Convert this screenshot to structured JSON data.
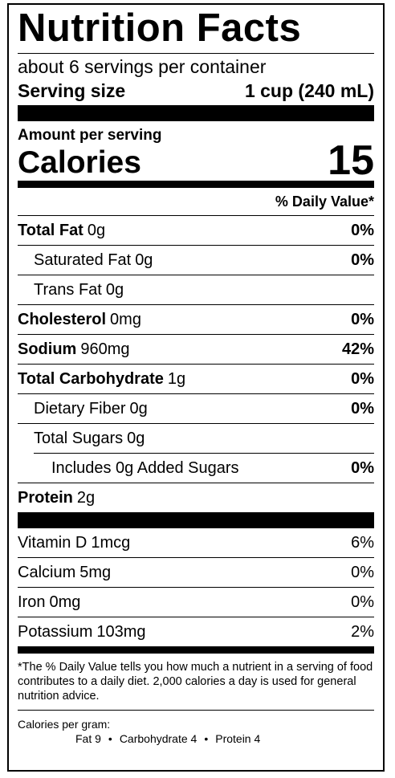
{
  "title": "Nutrition Facts",
  "servings": "about 6 servings per container",
  "serving_size": {
    "label": "Serving size",
    "value": "1 cup (240 mL)"
  },
  "amount_per_serving": "Amount per serving",
  "calories": {
    "label": "Calories",
    "value": 15
  },
  "daily_value_header": "% Daily Value*",
  "nutrients": [
    {
      "name": "Total Fat",
      "amount": "0g",
      "dv": "0%"
    },
    {
      "name": "Saturated Fat",
      "amount": "0g",
      "dv": "0%"
    },
    {
      "name": "Trans Fat",
      "amount": "0g"
    },
    {
      "name": "Cholesterol",
      "amount": "0mg",
      "dv": "0%"
    },
    {
      "name": "Sodium",
      "amount": "960mg",
      "dv": "42%"
    },
    {
      "name": "Total Carbohydrate",
      "amount": "1g",
      "dv": "0%"
    },
    {
      "name": "Dietary Fiber",
      "amount": "0g",
      "dv": "0%"
    },
    {
      "name": "Total Sugars",
      "amount": "0g"
    },
    {
      "name": "Includes 0g Added Sugars",
      "dv": "0%"
    },
    {
      "name": "Protein",
      "amount": "2g"
    }
  ],
  "vitamins": [
    {
      "name": "Vitamin D",
      "amount": "1mcg",
      "dv": "6%"
    },
    {
      "name": "Calcium",
      "amount": "5mg",
      "dv": "0%"
    },
    {
      "name": "Iron",
      "amount": "0mg",
      "dv": "0%"
    },
    {
      "name": "Potassium",
      "amount": "103mg",
      "dv": "2%"
    }
  ],
  "footnote": "*The % Daily Value tells you how much a nutrient in a serving of food contributes to a daily diet. 2,000 calories a day is used for general nutrition advice.",
  "calories_per_gram": {
    "label": "Calories per gram:",
    "items": [
      "Fat 9",
      "Carbohydrate 4",
      "Protein 4"
    ]
  }
}
